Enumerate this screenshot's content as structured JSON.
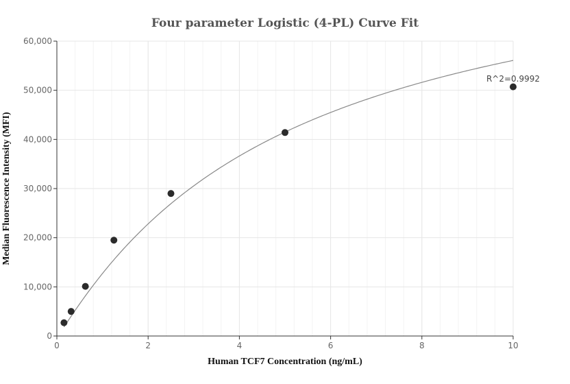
{
  "chart_data": {
    "type": "scatter",
    "title": "Four parameter Logistic (4-PL) Curve Fit",
    "xlabel": "Human TCF7 Concentration (ng/mL)",
    "ylabel": "Median Fluorescence Intensity (MFI)",
    "xlim": [
      0,
      10
    ],
    "ylim": [
      0,
      60000
    ],
    "x_ticks": [
      0,
      2,
      4,
      6,
      8,
      10
    ],
    "y_ticks": [
      0,
      10000,
      20000,
      30000,
      40000,
      50000,
      60000
    ],
    "x_tick_labels": [
      "0",
      "2",
      "4",
      "6",
      "8",
      "10"
    ],
    "y_tick_labels": [
      "0",
      "10,000",
      "20,000",
      "30,000",
      "40,000",
      "50,000",
      "60,000"
    ],
    "grid": true,
    "series": [
      {
        "x": [
          0.156,
          0.3125,
          0.625,
          1.25,
          2.5,
          5,
          10
        ],
        "y": [
          2700,
          5000,
          10100,
          19500,
          29000,
          41400,
          50700
        ]
      }
    ],
    "fit_curve": {
      "model": "4PL",
      "A": -300,
      "B": 1.05,
      "C": 5.0,
      "D": 83300
    },
    "annotation": "R^2=0.9992",
    "colors": {
      "points": "#2b2b2b",
      "curve": "#888888",
      "grid": "#e6e6e6",
      "axis": "#333333"
    }
  }
}
